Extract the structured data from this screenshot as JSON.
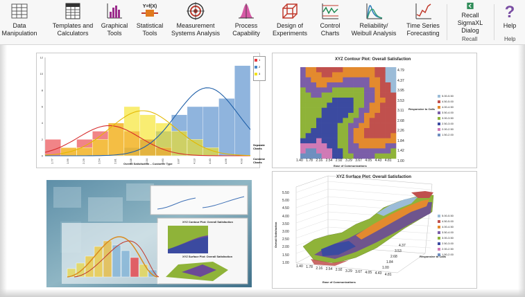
{
  "ribbon": {
    "buttons": [
      {
        "label": "Data\nManipulation",
        "has_caret": true
      },
      {
        "label": "Templates and\nCalculators",
        "has_caret": true
      },
      {
        "label": "Graphical\nTools",
        "has_caret": true
      },
      {
        "label": "Statistical\nTools",
        "has_caret": true,
        "icon_text": "Y=f(X)"
      },
      {
        "label": "Measurement\nSystems Analysis",
        "has_caret": true
      },
      {
        "label": "Process\nCapability",
        "has_caret": true
      },
      {
        "label": "Design of\nExperiments",
        "has_caret": true
      },
      {
        "label": "Control\nCharts",
        "has_caret": true
      },
      {
        "label": "Reliability/\nWeibull Analysis",
        "has_caret": true
      },
      {
        "label": "Time Series\nForecasting",
        "has_caret": true
      },
      {
        "label": "Recall SigmaXL\nDialog",
        "has_caret": false
      },
      {
        "label": "Help",
        "has_caret": true
      }
    ],
    "groups": {
      "recall": "Recall",
      "help": "Help"
    }
  },
  "histogram": {
    "legend": [
      "1",
      "2",
      "3"
    ],
    "colors": [
      "#e8383d",
      "#4a86c8",
      "#f5e21b"
    ],
    "xlabel": "Overall Satisfaction – Customer Type",
    "side_buttons": [
      "Separate\nCharts",
      "Combine\nCharts"
    ],
    "chart_data": {
      "type": "bar",
      "ylim": [
        0,
        12
      ],
      "y_ticks": [
        "12",
        "10",
        "8",
        "6",
        "4",
        "2",
        "0"
      ],
      "categories": [
        "1.77",
        "1.99",
        "2.29",
        "2.54",
        "2.81",
        "3.08",
        "3.34",
        "3.60",
        "3.87",
        "4.13",
        "4.40",
        "4.66",
        "4.93"
      ],
      "series": [
        {
          "name": "1",
          "values": [
            2,
            1,
            2,
            3,
            4,
            3,
            2,
            1,
            0,
            0,
            0,
            0,
            0
          ]
        },
        {
          "name": "2",
          "values": [
            0,
            0,
            0,
            0,
            0,
            1,
            2,
            3,
            5,
            6,
            6,
            7,
            11
          ]
        },
        {
          "name": "3",
          "values": [
            0,
            1,
            1,
            2,
            4,
            6,
            5,
            4,
            3,
            2,
            1,
            0,
            0
          ]
        }
      ]
    }
  },
  "contour": {
    "title": "XYZ Contour Plot: Overall Satisfaction",
    "x_ticks": [
      "1.40",
      "1.78",
      "2.16",
      "2.54",
      "2.92",
      "3.29",
      "3.67",
      "4.05",
      "4.43",
      "4.81"
    ],
    "y_ticks": [
      "4.79",
      "4.37",
      "3.95",
      "3.53",
      "3.11",
      "2.68",
      "2.26",
      "1.84",
      "1.42",
      "1.00"
    ],
    "xlabel": "Ease of Communications",
    "ylabel": "Responsive to Calls",
    "legend": [
      "5.00-5.50",
      "4.50-5.00",
      "4.00-4.50",
      "3.50-4.00",
      "3.00-3.50",
      "2.50-3.00",
      "2.00-2.50",
      "1.50-2.00"
    ],
    "colors": [
      "#9bbcd8",
      "#c0504d",
      "#e38a2e",
      "#7b5ea8",
      "#8fb339",
      "#3b4aa0",
      "#d07ab5",
      "#6e8fbf"
    ]
  },
  "surface": {
    "title": "XYZ Surface Plot: Overall Satisfaction",
    "z_ticks": [
      "5.50",
      "5.00",
      "4.50",
      "4.00",
      "3.50",
      "3.00",
      "2.50",
      "2.00",
      "1.50",
      "1.00"
    ],
    "x_ticks": [
      "1.40",
      "1.78",
      "2.16",
      "2.54",
      "2.92",
      "3.29",
      "3.67",
      "4.05",
      "4.43",
      "4.81"
    ],
    "y_ticks": [
      "4.37",
      "3.53",
      "2.68",
      "1.84",
      "1.00"
    ],
    "zlabel": "Overall Satisfaction",
    "xlabel": "Ease of Communications",
    "ylabel": "Responsive to Calls",
    "legend": [
      "5.00-5.50",
      "4.50-5.00",
      "4.00-4.50",
      "3.50-4.00",
      "3.00-3.50",
      "2.50-3.00",
      "2.00-2.50",
      "1.50-2.00"
    ]
  },
  "collage": {
    "inner_contour_title": "XYZ Contour Plot: Overall Satisfaction",
    "inner_surface_title": "XYZ Surface Plot: Overall Satisfaction"
  }
}
